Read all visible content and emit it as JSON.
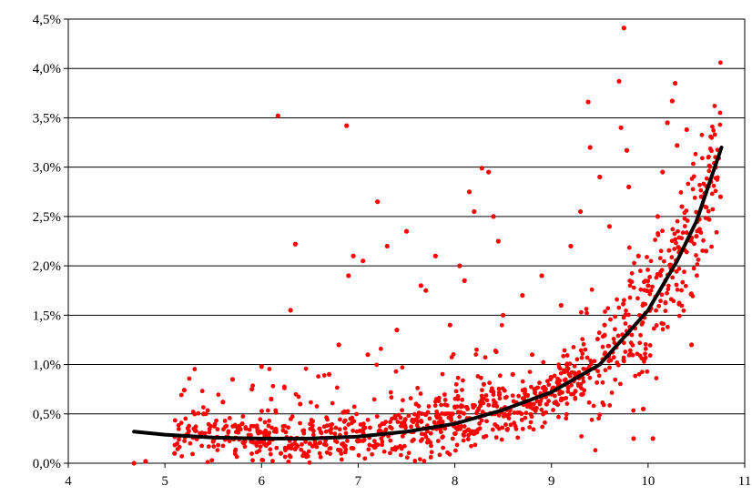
{
  "chart_data": {
    "type": "scatter",
    "title": "",
    "xlabel": "",
    "ylabel": "",
    "xlim": [
      4,
      11
    ],
    "ylim": [
      0,
      4.5
    ],
    "x_ticks": [
      4,
      5,
      6,
      7,
      8,
      9,
      10,
      11
    ],
    "y_ticks": [
      0,
      0.5,
      1.0,
      1.5,
      2.0,
      2.5,
      3.0,
      3.5,
      4.0,
      4.5
    ],
    "x_tick_labels": [
      "4",
      "5",
      "6",
      "7",
      "8",
      "9",
      "10",
      "11"
    ],
    "y_tick_labels": [
      "0,0%",
      "0,5%",
      "1,0%",
      "1,5%",
      "2,0%",
      "2,5%",
      "3,0%",
      "3,5%",
      "4,0%",
      "4,5%"
    ],
    "grid": "horizontal",
    "legend": "none",
    "colors": {
      "points": "#ff0000",
      "trend": "#000000",
      "grid": "#000000",
      "background": "#ffffff"
    },
    "series": [
      {
        "kind": "points",
        "points": [
          [
            4.68,
            0.0
          ],
          [
            4.8,
            0.02
          ],
          [
            5.2,
            0.74
          ],
          [
            5.1,
            0.1
          ],
          [
            5.3,
            0.35
          ],
          [
            5.4,
            0.5
          ],
          [
            5.5,
            0.22
          ],
          [
            5.6,
            0.62
          ],
          [
            5.7,
            0.85
          ],
          [
            5.8,
            0.4
          ],
          [
            5.9,
            0.75
          ],
          [
            6.0,
            0.98
          ],
          [
            6.05,
            0.3
          ],
          [
            6.1,
            0.65
          ],
          [
            6.17,
            3.52
          ],
          [
            6.2,
            0.1
          ],
          [
            6.3,
            1.55
          ],
          [
            6.35,
            2.22
          ],
          [
            6.4,
            0.6
          ],
          [
            6.5,
            0.2
          ],
          [
            6.6,
            0.35
          ],
          [
            6.7,
            0.9
          ],
          [
            6.8,
            1.2
          ],
          [
            6.88,
            3.42
          ],
          [
            6.9,
            1.9
          ],
          [
            6.95,
            2.1
          ],
          [
            7.05,
            2.05
          ],
          [
            7.1,
            1.1
          ],
          [
            7.2,
            2.65
          ],
          [
            7.25,
            0.4
          ],
          [
            7.3,
            2.2
          ],
          [
            7.4,
            1.35
          ],
          [
            7.5,
            2.35
          ],
          [
            7.6,
            0.6
          ],
          [
            7.65,
            1.8
          ],
          [
            7.7,
            1.75
          ],
          [
            7.8,
            2.1
          ],
          [
            7.9,
            0.5
          ],
          [
            7.95,
            1.4
          ],
          [
            8.0,
            0.3
          ],
          [
            8.05,
            2.0
          ],
          [
            8.1,
            1.85
          ],
          [
            8.15,
            2.75
          ],
          [
            8.2,
            2.55
          ],
          [
            8.28,
            2.99
          ],
          [
            8.3,
            0.8
          ],
          [
            8.35,
            2.95
          ],
          [
            8.4,
            2.5
          ],
          [
            8.45,
            2.25
          ],
          [
            8.5,
            1.5
          ],
          [
            8.6,
            0.9
          ],
          [
            8.7,
            1.7
          ],
          [
            8.8,
            1.1
          ],
          [
            8.9,
            1.9
          ],
          [
            9.0,
            0.7
          ],
          [
            9.1,
            1.6
          ],
          [
            9.2,
            2.2
          ],
          [
            9.3,
            2.55
          ],
          [
            9.38,
            3.66
          ],
          [
            9.4,
            3.2
          ],
          [
            9.5,
            2.9
          ],
          [
            9.55,
            1.4
          ],
          [
            9.6,
            2.4
          ],
          [
            9.7,
            3.87
          ],
          [
            9.72,
            3.4
          ],
          [
            9.75,
            4.41
          ],
          [
            9.78,
            3.17
          ],
          [
            9.8,
            2.8
          ],
          [
            9.85,
            0.25
          ],
          [
            9.9,
            2.1
          ],
          [
            9.95,
            0.55
          ],
          [
            10.0,
            1.8
          ],
          [
            10.05,
            0.25
          ],
          [
            10.1,
            2.5
          ],
          [
            10.15,
            2.95
          ],
          [
            10.2,
            3.45
          ],
          [
            10.25,
            3.67
          ],
          [
            10.28,
            3.85
          ],
          [
            10.3,
            3.22
          ],
          [
            10.35,
            2.6
          ],
          [
            10.4,
            3.38
          ],
          [
            10.45,
            1.2
          ],
          [
            10.5,
            2.3
          ],
          [
            10.55,
            2.7
          ],
          [
            10.6,
            2.15
          ],
          [
            10.65,
            2.85
          ],
          [
            10.7,
            3.0
          ],
          [
            10.75,
            2.7
          ]
        ]
      },
      {
        "kind": "trendline",
        "points": [
          [
            4.68,
            0.32
          ],
          [
            5.0,
            0.29
          ],
          [
            5.5,
            0.26
          ],
          [
            6.0,
            0.25
          ],
          [
            6.5,
            0.25
          ],
          [
            7.0,
            0.27
          ],
          [
            7.5,
            0.32
          ],
          [
            8.0,
            0.4
          ],
          [
            8.5,
            0.54
          ],
          [
            9.0,
            0.72
          ],
          [
            9.5,
            1.0
          ],
          [
            10.0,
            1.55
          ],
          [
            10.3,
            2.05
          ],
          [
            10.5,
            2.45
          ],
          [
            10.76,
            3.2
          ]
        ]
      }
    ]
  }
}
